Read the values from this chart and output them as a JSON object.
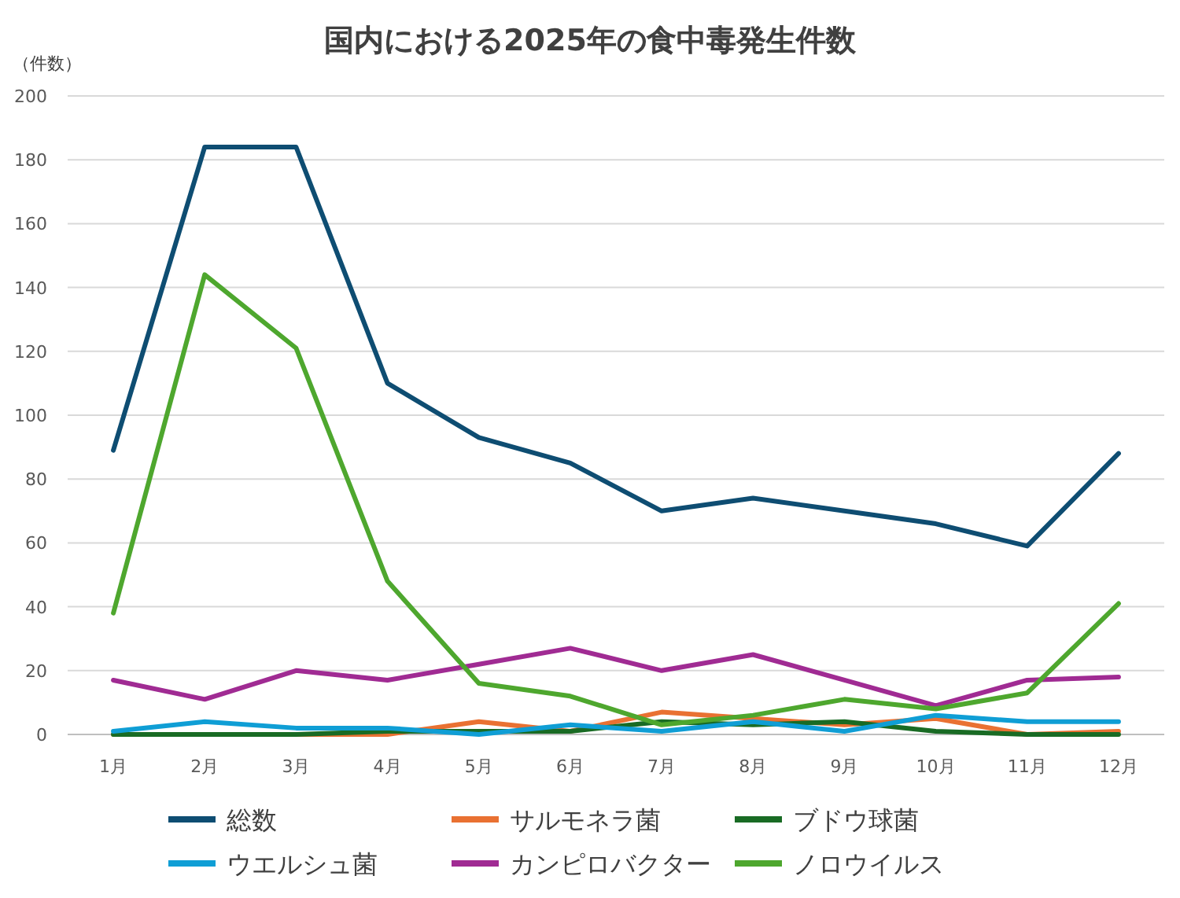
{
  "chart_data": {
    "type": "line",
    "title": "国内における2025年の食中毒発生件数",
    "ylabel": "（件数）",
    "categories": [
      "1月",
      "2月",
      "3月",
      "4月",
      "5月",
      "6月",
      "7月",
      "8月",
      "9月",
      "10月",
      "11月",
      "12月"
    ],
    "ylim": [
      0,
      200
    ],
    "yticks": [
      0,
      20,
      40,
      60,
      80,
      100,
      120,
      140,
      160,
      180,
      200
    ],
    "grid": "y",
    "legend": "bottom",
    "marker": "none",
    "series": [
      {
        "name": "総数",
        "color": "#0e4d72",
        "values": [
          89,
          184,
          184,
          110,
          93,
          85,
          70,
          74,
          70,
          66,
          59,
          88
        ]
      },
      {
        "name": "サルモネラ菌",
        "color": "#e97132",
        "values": [
          0,
          0,
          0,
          0,
          4,
          1,
          7,
          5,
          3,
          5,
          0,
          1
        ]
      },
      {
        "name": "ブドウ球菌",
        "color": "#196b24",
        "values": [
          0,
          0,
          0,
          1,
          1,
          1,
          4,
          3,
          4,
          1,
          0,
          0
        ]
      },
      {
        "name": "ウエルシュ菌",
        "color": "#0f9ed5",
        "values": [
          1,
          4,
          2,
          2,
          0,
          3,
          1,
          4,
          1,
          6,
          4,
          4
        ]
      },
      {
        "name": "カンピロバクター",
        "color": "#a02b93",
        "values": [
          17,
          11,
          20,
          17,
          22,
          27,
          20,
          25,
          17,
          9,
          17,
          18
        ]
      },
      {
        "name": "ノロウイルス",
        "color": "#4ea72e",
        "values": [
          38,
          144,
          121,
          48,
          16,
          12,
          3,
          6,
          11,
          8,
          13,
          41
        ]
      }
    ]
  }
}
